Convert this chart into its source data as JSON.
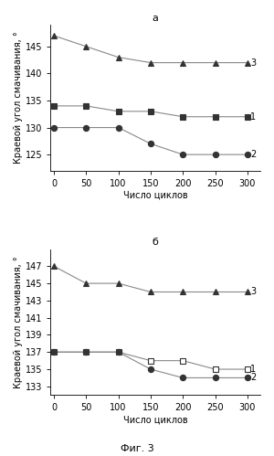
{
  "subplot_a": {
    "title": "а",
    "series": [
      {
        "label": "1",
        "x": [
          0,
          50,
          100,
          150,
          200,
          250,
          300
        ],
        "y": [
          134,
          134,
          133,
          133,
          132,
          132,
          132
        ],
        "marker": "s",
        "fillstyle": "full",
        "color": "#555555"
      },
      {
        "label": "2",
        "x": [
          0,
          50,
          100,
          150,
          200,
          250,
          300
        ],
        "y": [
          130,
          130,
          130,
          127,
          125,
          125,
          125
        ],
        "marker": "o",
        "fillstyle": "full",
        "color": "#555555"
      },
      {
        "label": "3",
        "x": [
          0,
          50,
          100,
          150,
          200,
          250,
          300
        ],
        "y": [
          147,
          145,
          143,
          142,
          142,
          142,
          142
        ],
        "marker": "^",
        "fillstyle": "full",
        "color": "#555555"
      }
    ],
    "xlabel": "Число циклов",
    "ylabel": "Краевой угол смачивания, °",
    "ylim": [
      122,
      149
    ],
    "yticks": [
      125,
      130,
      135,
      140,
      145
    ],
    "xlim": [
      -5,
      320
    ],
    "xticks": [
      0,
      50,
      100,
      150,
      200,
      250,
      300
    ]
  },
  "subplot_b": {
    "title": "б",
    "series": [
      {
        "label": "1",
        "x": [
          0,
          50,
          100,
          150,
          200,
          250,
          300
        ],
        "y": [
          137,
          137,
          137,
          136,
          136,
          135,
          135
        ],
        "marker": "s",
        "fillstyle": "none",
        "color": "#555555"
      },
      {
        "label": "2",
        "x": [
          0,
          50,
          100,
          150,
          200,
          250,
          300
        ],
        "y": [
          137,
          137,
          137,
          135,
          134,
          134,
          134
        ],
        "marker": "o",
        "fillstyle": "full",
        "color": "#555555"
      },
      {
        "label": "3",
        "x": [
          0,
          50,
          100,
          150,
          200,
          250,
          300
        ],
        "y": [
          147,
          145,
          145,
          144,
          144,
          144,
          144
        ],
        "marker": "^",
        "fillstyle": "full",
        "color": "#555555"
      }
    ],
    "xlabel": "Число циклов",
    "ylabel": "Краевой угол смачивания, °",
    "ylim": [
      132,
      149
    ],
    "yticks": [
      133,
      135,
      137,
      139,
      141,
      143,
      145,
      147
    ],
    "xlim": [
      -5,
      320
    ],
    "xticks": [
      0,
      50,
      100,
      150,
      200,
      250,
      300
    ]
  },
  "fig_label": "Фиг. 3",
  "background_color": "#ffffff",
  "line_color": "#888888",
  "marker_color": "#333333",
  "fontsize": 7,
  "label_fontsize": 7
}
